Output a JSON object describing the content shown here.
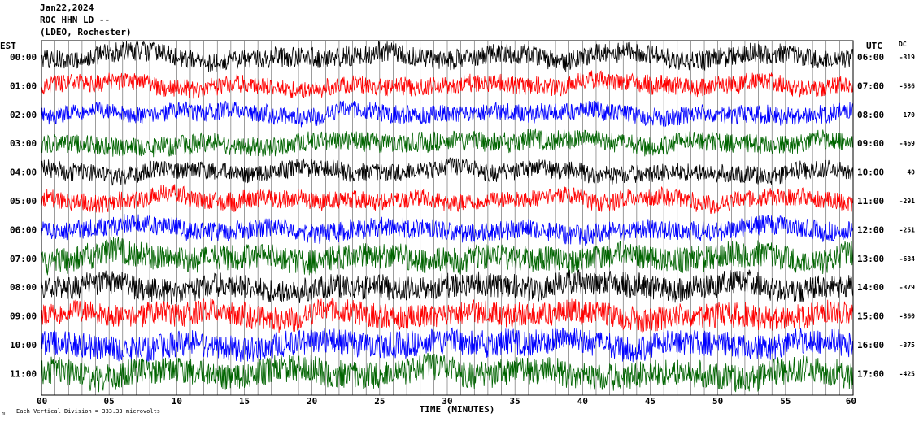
{
  "header": {
    "date": "Jan22,2024",
    "station": "ROC HHN LD --",
    "network": "(LDEO, Rochester)"
  },
  "chart_data": {
    "type": "line",
    "left_axis_label": "EST",
    "right_axis_label": "UTC",
    "dc_label": "DC",
    "rows": [
      {
        "est": "00:00",
        "utc": "06:00",
        "dc": "-319",
        "color": "#000000"
      },
      {
        "est": "01:00",
        "utc": "07:00",
        "dc": "-586",
        "color": "#ff0000"
      },
      {
        "est": "02:00",
        "utc": "08:00",
        "dc": "170",
        "color": "#0000ff"
      },
      {
        "est": "03:00",
        "utc": "09:00",
        "dc": "-469",
        "color": "#006400"
      },
      {
        "est": "04:00",
        "utc": "10:00",
        "dc": "40",
        "color": "#000000"
      },
      {
        "est": "05:00",
        "utc": "11:00",
        "dc": "-291",
        "color": "#ff0000"
      },
      {
        "est": "06:00",
        "utc": "12:00",
        "dc": "-251",
        "color": "#0000ff"
      },
      {
        "est": "07:00",
        "utc": "13:00",
        "dc": "-684",
        "color": "#006400"
      },
      {
        "est": "08:00",
        "utc": "14:00",
        "dc": "-379",
        "color": "#000000"
      },
      {
        "est": "09:00",
        "utc": "15:00",
        "dc": "-360",
        "color": "#ff0000"
      },
      {
        "est": "10:00",
        "utc": "16:00",
        "dc": "-375",
        "color": "#0000ff"
      },
      {
        "est": "11:00",
        "utc": "17:00",
        "dc": "-425",
        "color": "#006400"
      }
    ],
    "x_ticks": [
      "00",
      "05",
      "10",
      "15",
      "20",
      "25",
      "30",
      "35",
      "40",
      "45",
      "50",
      "55",
      "60"
    ],
    "x_range": [
      0,
      60
    ],
    "xlabel": "TIME (MINUTES)",
    "footer_note": "Each Vertical Division = 333.33 microvolts",
    "corner_mark": "JL",
    "amplitudes": [
      12,
      11,
      11,
      12,
      11,
      11,
      12,
      16,
      15,
      15,
      16,
      17
    ],
    "grid": "vertical-every-minute"
  }
}
